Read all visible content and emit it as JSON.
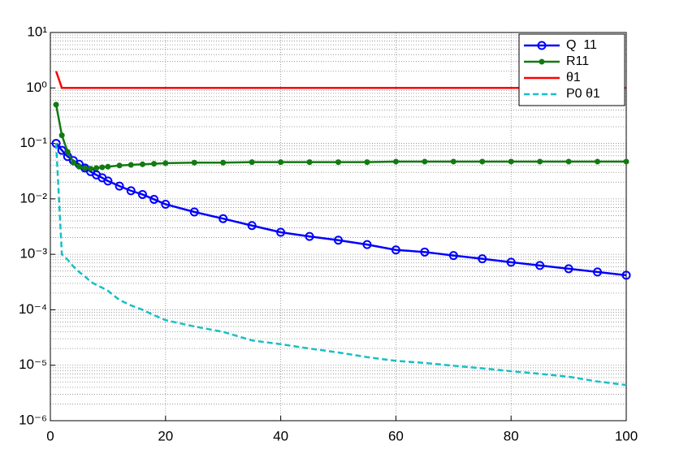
{
  "chart_data": {
    "type": "line",
    "log_y": true,
    "grid": true,
    "minor_grid": true,
    "legend": "upper right",
    "xlim": [
      0,
      100
    ],
    "xticks": [
      0,
      20,
      40,
      60,
      80,
      100
    ],
    "ylim": [
      1e-06,
      10
    ],
    "yticks": [
      {
        "value": 1e-06,
        "label": "10⁻⁶"
      },
      {
        "value": 1e-05,
        "label": "10⁻⁵"
      },
      {
        "value": 0.0001,
        "label": "10⁻⁴"
      },
      {
        "value": 0.001,
        "label": "10⁻³"
      },
      {
        "value": 0.01,
        "label": "10⁻²"
      },
      {
        "value": 0.1,
        "label": "10⁻¹"
      },
      {
        "value": 1,
        "label": "10⁰"
      },
      {
        "value": 10,
        "label": "10¹"
      }
    ],
    "x": [
      1,
      2,
      3,
      4,
      5,
      6,
      7,
      8,
      9,
      10,
      12,
      14,
      16,
      18,
      20,
      25,
      30,
      35,
      40,
      45,
      50,
      55,
      60,
      65,
      70,
      75,
      80,
      85,
      90,
      95,
      100
    ],
    "series": [
      {
        "name": "Q  11",
        "color": "#0000ff",
        "marker": "circle",
        "dashed": false,
        "values": [
          0.1,
          0.075,
          0.058,
          0.049,
          0.042,
          0.036,
          0.031,
          0.027,
          0.024,
          0.021,
          0.017,
          0.014,
          0.012,
          0.0098,
          0.008,
          0.0058,
          0.0044,
          0.0033,
          0.0025,
          0.0021,
          0.0018,
          0.0015,
          0.0012,
          0.0011,
          0.00095,
          0.00083,
          0.00072,
          0.00063,
          0.00055,
          0.00048,
          0.00042
        ]
      },
      {
        "name": "R11",
        "color": "#127a12",
        "marker": "dot",
        "dashed": false,
        "values": [
          0.5,
          0.14,
          0.07,
          0.045,
          0.038,
          0.036,
          0.035,
          0.036,
          0.037,
          0.038,
          0.04,
          0.041,
          0.042,
          0.043,
          0.044,
          0.045,
          0.045,
          0.046,
          0.046,
          0.046,
          0.046,
          0.046,
          0.047,
          0.047,
          0.047,
          0.047,
          0.047,
          0.047,
          0.047,
          0.047,
          0.047
        ]
      },
      {
        "name": "θ1",
        "color": "#ff0000",
        "marker": null,
        "dashed": false,
        "values": [
          2,
          1,
          1,
          1,
          1,
          1,
          1,
          1,
          1,
          1,
          1,
          1,
          1,
          1,
          1,
          1,
          1,
          1,
          1,
          1,
          1,
          1,
          1,
          1,
          1,
          1,
          1,
          1,
          1,
          1,
          1
        ]
      },
      {
        "name": "P0 θ1",
        "color": "#17bfc4",
        "marker": null,
        "dashed": true,
        "values": [
          0.1,
          0.001,
          0.0008,
          0.0006,
          0.00048,
          0.0004,
          0.00032,
          0.00028,
          0.00025,
          0.00022,
          0.00015,
          0.00012,
          0.0001,
          8e-05,
          6.5e-05,
          5e-05,
          4e-05,
          2.8e-05,
          2.4e-05,
          2e-05,
          1.7e-05,
          1.4e-05,
          1.2e-05,
          1.1e-05,
          9.8e-06,
          8.8e-06,
          7.8e-06,
          7e-06,
          6.2e-06,
          5.1e-06,
          4.4e-06
        ]
      }
    ]
  }
}
